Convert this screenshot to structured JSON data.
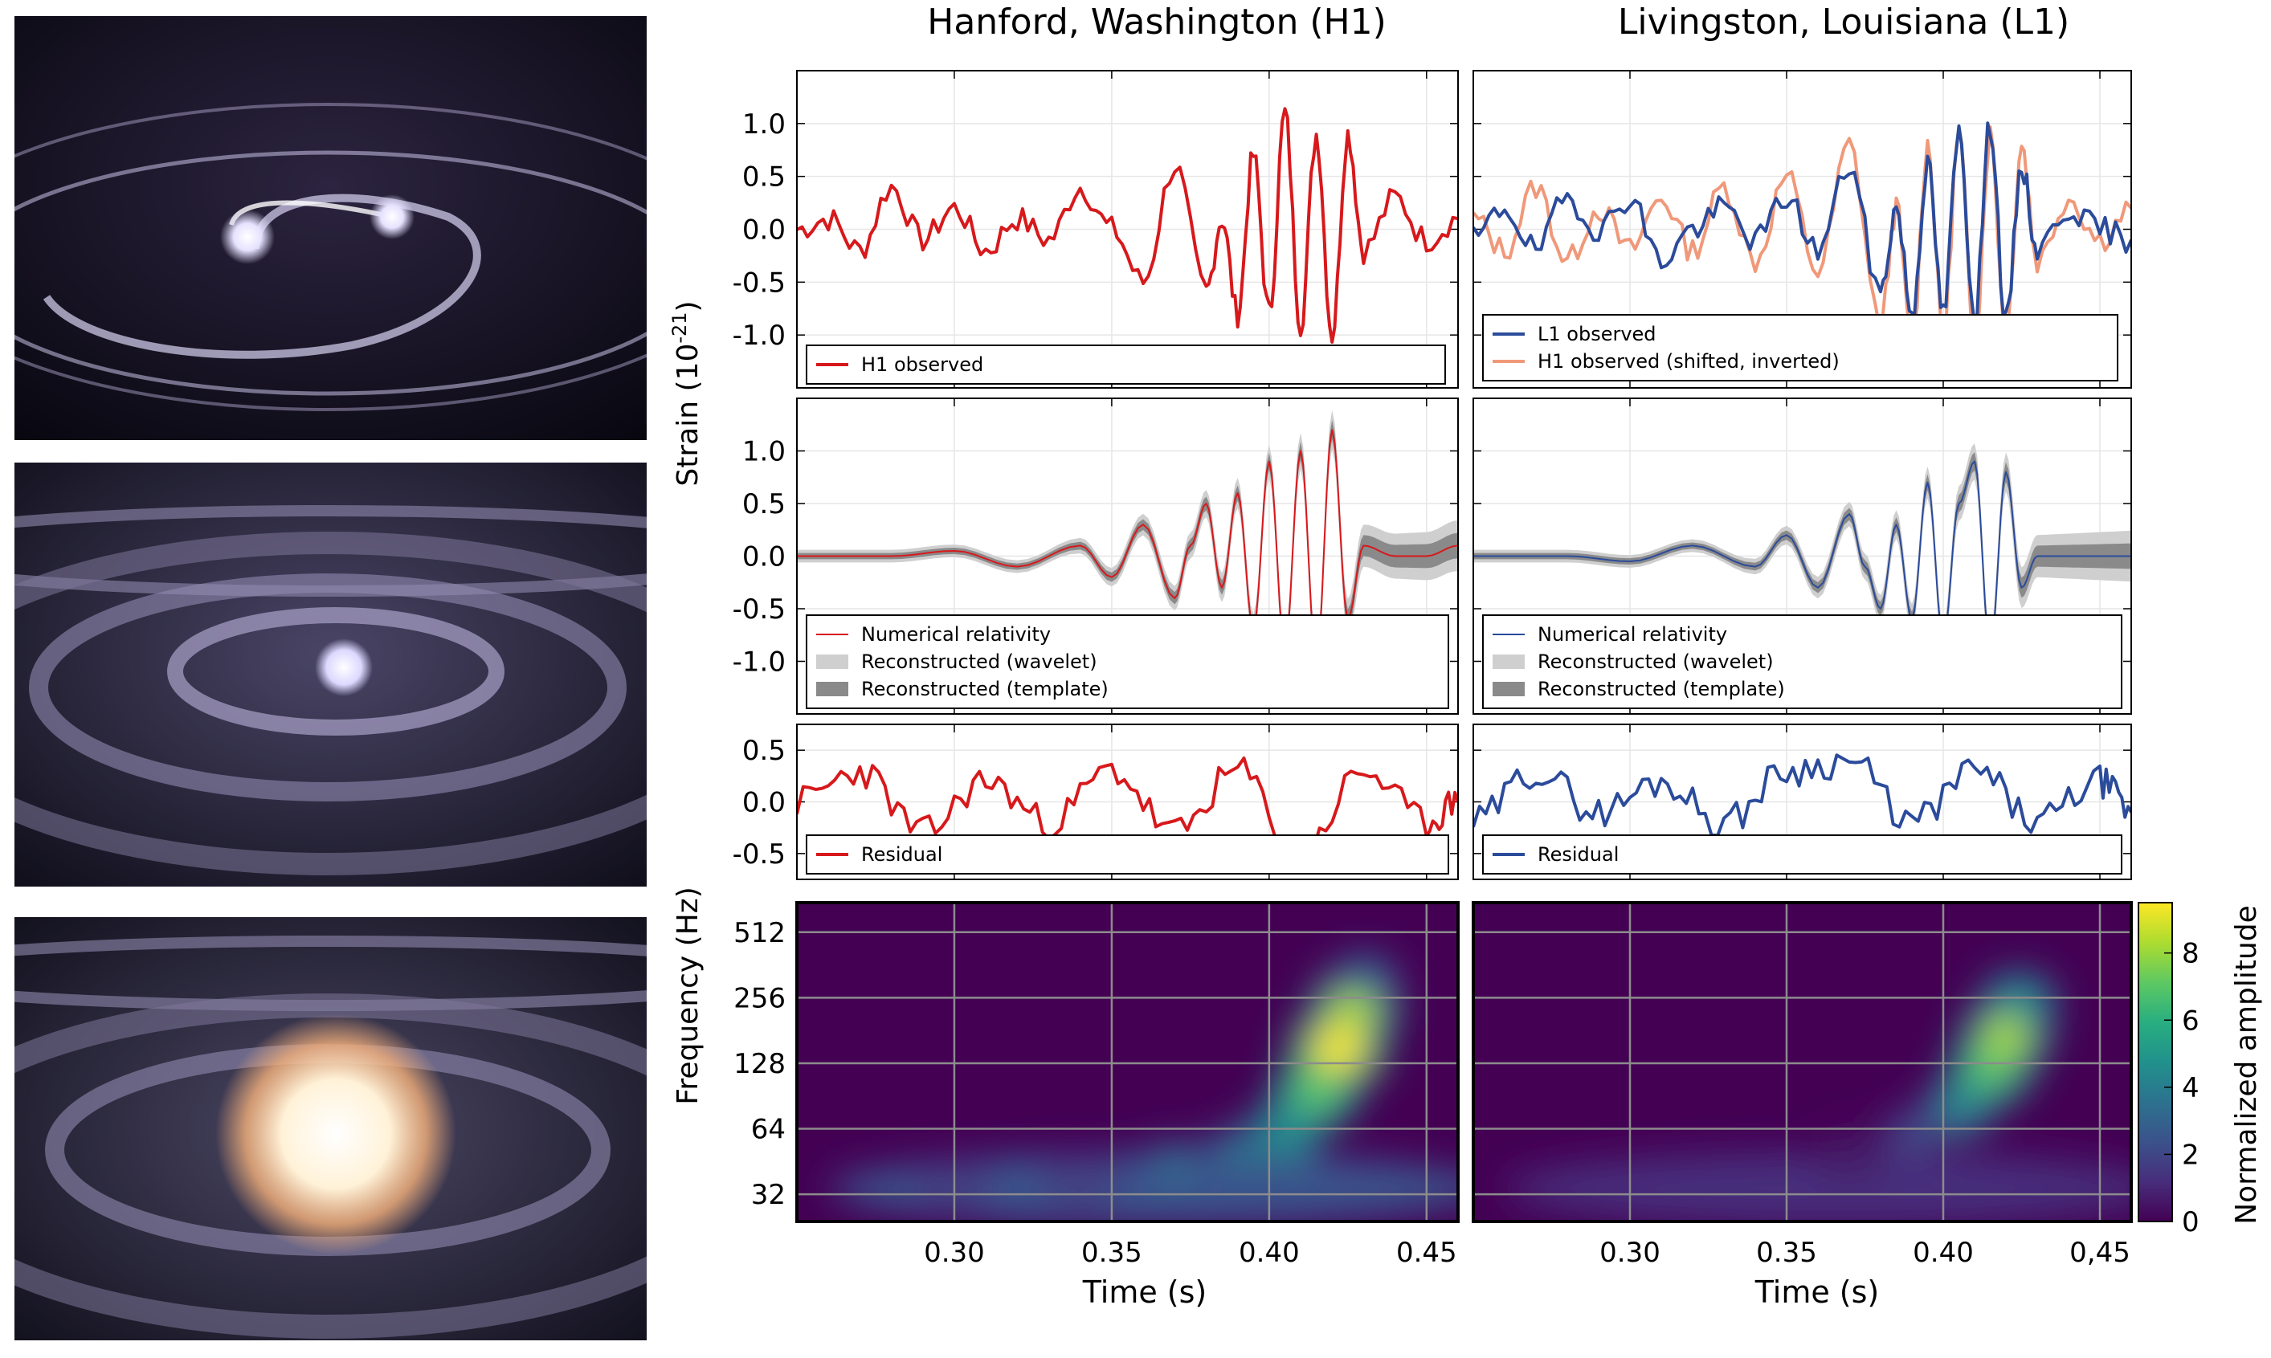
{
  "figure": {
    "h1_title": "Hanford, Washington (H1)",
    "l1_title": "Livingston, Louisiana (L1)",
    "strain_label": "Strain (10",
    "strain_exp": "-21",
    "strain_close": ")",
    "freq_label": "Frequency (Hz)",
    "time_label": "Time (s)",
    "colorbar_label": "Normalized amplitude",
    "illustrations": [
      "binary-black-holes-inspiral",
      "binary-black-holes-near-merger",
      "binary-black-holes-merger"
    ]
  },
  "colors": {
    "h1": "#d7191c",
    "l1": "#2b4b9b",
    "h1_shifted": "#f0997a",
    "wavelet": "#cfcfcf",
    "template": "#8a8a8a",
    "frame": "#000000",
    "grid": "#e6e6e6"
  },
  "chart_data": [
    {
      "id": "h1_observed",
      "type": "line",
      "panel": "H1 observed strain",
      "xlim": [
        0.25,
        0.46
      ],
      "ylim": [
        -1.5,
        1.5
      ],
      "yticks": [
        1.0,
        0.5,
        0.0,
        -0.5,
        -1.0
      ],
      "ytick_labels": [
        "1.0",
        "0.5",
        "0.0",
        "-0.5",
        "-1.0"
      ],
      "legend": [
        "H1 observed"
      ],
      "series": [
        {
          "name": "H1 observed",
          "x": [
            0.25,
            0.26,
            0.27,
            0.28,
            0.29,
            0.3,
            0.31,
            0.32,
            0.33,
            0.34,
            0.35,
            0.36,
            0.37,
            0.38,
            0.385,
            0.39,
            0.395,
            0.4,
            0.405,
            0.41,
            0.415,
            0.42,
            0.425,
            0.43,
            0.44,
            0.45,
            0.46
          ],
          "y": [
            0.0,
            0.1,
            -0.2,
            0.4,
            -0.1,
            0.2,
            -0.2,
            0.1,
            -0.1,
            0.4,
            0.0,
            -0.5,
            0.6,
            -0.6,
            0.1,
            -0.8,
            0.7,
            -0.8,
            1.1,
            -0.9,
            0.9,
            -1.0,
            0.9,
            -0.2,
            0.3,
            -0.1,
            0.1
          ]
        }
      ]
    },
    {
      "id": "l1_observed",
      "type": "line",
      "panel": "L1 observed strain",
      "xlim": [
        0.25,
        0.46
      ],
      "ylim": [
        -1.5,
        1.5
      ],
      "legend": [
        "L1 observed",
        "H1 observed (shifted, inverted)"
      ],
      "series": [
        {
          "name": "L1 observed",
          "x": [
            0.25,
            0.26,
            0.27,
            0.28,
            0.29,
            0.3,
            0.31,
            0.32,
            0.33,
            0.34,
            0.35,
            0.36,
            0.37,
            0.38,
            0.385,
            0.39,
            0.395,
            0.4,
            0.405,
            0.41,
            0.415,
            0.42,
            0.425,
            0.43,
            0.44,
            0.45,
            0.46
          ],
          "y": [
            -0.1,
            0.2,
            -0.2,
            0.3,
            0.0,
            0.3,
            -0.3,
            0.0,
            0.2,
            -0.1,
            0.3,
            -0.2,
            0.6,
            -0.6,
            0.2,
            -0.8,
            0.6,
            -0.8,
            0.9,
            -0.8,
            1.0,
            -0.9,
            0.6,
            -0.2,
            0.2,
            0.0,
            -0.1
          ]
        },
        {
          "name": "H1 observed (shifted, inverted)",
          "x": [
            0.25,
            0.26,
            0.27,
            0.28,
            0.29,
            0.3,
            0.31,
            0.32,
            0.33,
            0.34,
            0.35,
            0.36,
            0.37,
            0.38,
            0.385,
            0.39,
            0.395,
            0.4,
            0.405,
            0.41,
            0.415,
            0.42,
            0.425,
            0.43,
            0.44,
            0.45,
            0.46
          ],
          "y": [
            0.1,
            -0.2,
            0.4,
            -0.3,
            0.2,
            -0.2,
            0.3,
            -0.2,
            0.4,
            -0.3,
            0.5,
            -0.4,
            0.8,
            -0.9,
            0.2,
            -1.1,
            0.8,
            -1.0,
            0.9,
            -1.1,
            0.9,
            -1.0,
            0.8,
            -0.3,
            0.3,
            -0.1,
            0.2
          ]
        }
      ]
    },
    {
      "id": "h1_reconstructed",
      "type": "line",
      "panel": "H1 numerical relativity and reconstructions",
      "xlim": [
        0.25,
        0.46
      ],
      "ylim": [
        -1.5,
        1.5
      ],
      "yticks": [
        1.0,
        0.5,
        0.0,
        -0.5,
        -1.0
      ],
      "ytick_labels": [
        "1.0",
        "0.5",
        "0.0",
        "-0.5",
        "-1.0"
      ],
      "legend": [
        "Numerical relativity",
        "Reconstructed (wavelet)",
        "Reconstructed (template)"
      ],
      "series": [
        {
          "name": "Numerical relativity",
          "x": [
            0.25,
            0.28,
            0.3,
            0.32,
            0.34,
            0.35,
            0.36,
            0.37,
            0.375,
            0.38,
            0.385,
            0.39,
            0.395,
            0.4,
            0.405,
            0.41,
            0.415,
            0.42,
            0.425,
            0.43,
            0.44,
            0.45,
            0.46
          ],
          "y": [
            0.0,
            0.0,
            0.05,
            -0.1,
            0.1,
            -0.2,
            0.3,
            -0.4,
            0.1,
            0.5,
            -0.3,
            0.6,
            -0.7,
            0.9,
            -0.9,
            1.0,
            -1.0,
            1.2,
            -0.6,
            0.1,
            0.0,
            0.0,
            0.1
          ]
        }
      ]
    },
    {
      "id": "l1_reconstructed",
      "type": "line",
      "panel": "L1 numerical relativity and reconstructions",
      "xlim": [
        0.25,
        0.46
      ],
      "ylim": [
        -1.5,
        1.5
      ],
      "legend": [
        "Numerical relativity",
        "Reconstructed (wavelet)",
        "Reconstructed (template)"
      ],
      "series": [
        {
          "name": "Numerical relativity",
          "x": [
            0.25,
            0.28,
            0.3,
            0.32,
            0.34,
            0.35,
            0.36,
            0.37,
            0.375,
            0.38,
            0.385,
            0.39,
            0.395,
            0.4,
            0.405,
            0.41,
            0.415,
            0.42,
            0.425,
            0.43,
            0.44,
            0.45,
            0.46
          ],
          "y": [
            0.0,
            0.0,
            -0.05,
            0.1,
            -0.1,
            0.2,
            -0.3,
            0.4,
            -0.1,
            -0.5,
            0.3,
            -0.6,
            0.7,
            -0.8,
            0.5,
            0.9,
            -0.9,
            0.8,
            -0.3,
            0.0,
            0.0,
            0.0,
            0.0
          ]
        }
      ]
    },
    {
      "id": "h1_residual",
      "type": "line",
      "panel": "H1 residual",
      "xlim": [
        0.25,
        0.46
      ],
      "ylim": [
        -0.75,
        0.75
      ],
      "yticks": [
        0.5,
        0.0,
        -0.5
      ],
      "ytick_labels": [
        "0.5",
        "0.0",
        "-0.5"
      ],
      "legend": [
        "Residual"
      ],
      "series": [
        {
          "name": "Residual",
          "x": [
            0.25,
            0.27,
            0.29,
            0.31,
            0.33,
            0.35,
            0.37,
            0.39,
            0.41,
            0.43,
            0.45,
            0.46
          ],
          "y": [
            0.0,
            0.3,
            -0.3,
            0.2,
            -0.2,
            0.3,
            -0.3,
            0.3,
            -0.5,
            0.3,
            -0.2,
            0.0
          ]
        }
      ]
    },
    {
      "id": "l1_residual",
      "type": "line",
      "panel": "L1 residual",
      "xlim": [
        0.25,
        0.46
      ],
      "ylim": [
        -0.75,
        0.75
      ],
      "legend": [
        "Residual"
      ],
      "series": [
        {
          "name": "Residual",
          "x": [
            0.25,
            0.27,
            0.29,
            0.31,
            0.33,
            0.35,
            0.37,
            0.39,
            0.41,
            0.43,
            0.45,
            0.46
          ],
          "y": [
            -0.2,
            0.3,
            -0.1,
            0.2,
            -0.2,
            0.3,
            0.4,
            -0.2,
            0.3,
            -0.2,
            0.2,
            -0.1
          ]
        }
      ]
    },
    {
      "id": "h1_spectrogram",
      "type": "heatmap",
      "panel": "H1 time-frequency",
      "xlim": [
        0.25,
        0.46
      ],
      "yscale": "log2",
      "ylim": [
        24,
        700
      ],
      "xticks": [
        0.3,
        0.35,
        0.4,
        0.45
      ],
      "xtick_labels": [
        "0.30",
        "0.35",
        "0.40",
        "0.45"
      ],
      "yticks": [
        512,
        256,
        128,
        64,
        32
      ],
      "ytick_labels": [
        "512",
        "256",
        "128",
        "64",
        "32"
      ],
      "chirp": [
        {
          "t": 0.3,
          "f": 36,
          "a": 2.5
        },
        {
          "t": 0.34,
          "f": 38,
          "a": 3.0
        },
        {
          "t": 0.37,
          "f": 42,
          "a": 3.2
        },
        {
          "t": 0.39,
          "f": 48,
          "a": 3.6
        },
        {
          "t": 0.405,
          "f": 62,
          "a": 5.0
        },
        {
          "t": 0.415,
          "f": 95,
          "a": 7.0
        },
        {
          "t": 0.422,
          "f": 150,
          "a": 9.0
        },
        {
          "t": 0.427,
          "f": 230,
          "a": 7.5
        },
        {
          "t": 0.43,
          "f": 300,
          "a": 3.5
        }
      ]
    },
    {
      "id": "l1_spectrogram",
      "type": "heatmap",
      "panel": "L1 time-frequency",
      "xlim": [
        0.25,
        0.46
      ],
      "yscale": "log2",
      "ylim": [
        24,
        700
      ],
      "xticks": [
        0.3,
        0.35,
        0.4,
        0.45
      ],
      "xtick_labels": [
        "0.30",
        "0.35",
        "0.40",
        "0,45"
      ],
      "chirp": [
        {
          "t": 0.37,
          "f": 50,
          "a": 1.5
        },
        {
          "t": 0.39,
          "f": 60,
          "a": 2.5
        },
        {
          "t": 0.405,
          "f": 80,
          "a": 4.5
        },
        {
          "t": 0.415,
          "f": 120,
          "a": 6.5
        },
        {
          "t": 0.42,
          "f": 170,
          "a": 7.5
        },
        {
          "t": 0.424,
          "f": 240,
          "a": 5.0
        }
      ]
    },
    {
      "id": "colorbar",
      "type": "heatmap",
      "panel": "Normalized amplitude colour scale",
      "ylim": [
        0,
        9.5
      ],
      "yticks": [
        8,
        6,
        4,
        2,
        0
      ],
      "ytick_labels": [
        "8",
        "6",
        "4",
        "2",
        "0"
      ],
      "colormap": [
        "#440154",
        "#472d7b",
        "#3b528b",
        "#2c728e",
        "#21918c",
        "#28ae80",
        "#5ec962",
        "#addc30",
        "#fde725"
      ]
    }
  ]
}
